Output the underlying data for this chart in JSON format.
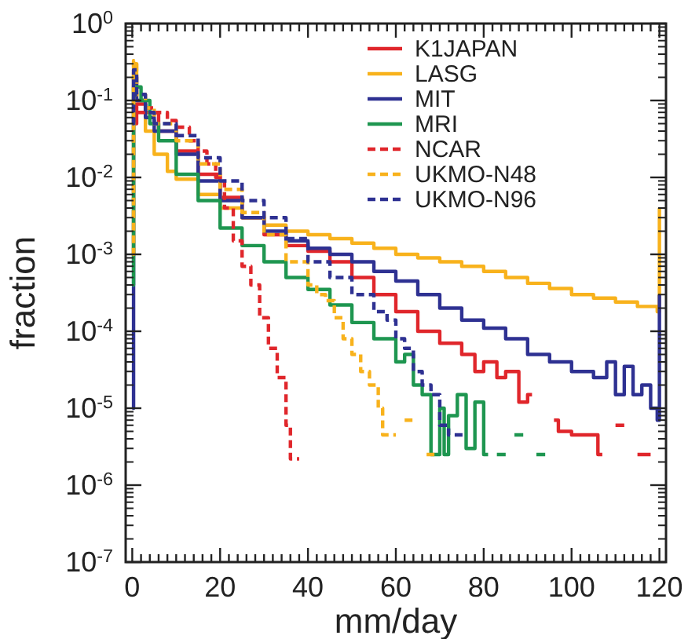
{
  "chart_data": {
    "type": "step",
    "xlabel": "mm/day",
    "ylabel": "fraction",
    "log": "y",
    "legend": "top right",
    "grid": false,
    "xlim": [
      -1.5,
      121.5
    ],
    "ylim": [
      1e-07,
      1
    ],
    "xticks": [
      0,
      {
        "value": 2,
        "label": null
      },
      {
        "value": 4,
        "label": null
      },
      {
        "value": 6,
        "label": null
      },
      {
        "value": 8,
        "label": null
      },
      {
        "value": 10,
        "label": null
      },
      {
        "value": 12,
        "label": null
      },
      {
        "value": 14,
        "label": null
      },
      {
        "value": 16,
        "label": null
      },
      {
        "value": 18,
        "label": null
      },
      20,
      {
        "value": 22,
        "label": null
      },
      {
        "value": 24,
        "label": null
      },
      {
        "value": 26,
        "label": null
      },
      {
        "value": 28,
        "label": null
      },
      {
        "value": 30,
        "label": null
      },
      {
        "value": 32,
        "label": null
      },
      {
        "value": 34,
        "label": null
      },
      {
        "value": 36,
        "label": null
      },
      {
        "value": 38,
        "label": null
      },
      40,
      {
        "value": 42,
        "label": null
      },
      {
        "value": 44,
        "label": null
      },
      {
        "value": 46,
        "label": null
      },
      {
        "value": 48,
        "label": null
      },
      {
        "value": 50,
        "label": null
      },
      {
        "value": 52,
        "label": null
      },
      {
        "value": 54,
        "label": null
      },
      {
        "value": 56,
        "label": null
      },
      {
        "value": 58,
        "label": null
      },
      60,
      {
        "value": 62,
        "label": null
      },
      {
        "value": 64,
        "label": null
      },
      {
        "value": 66,
        "label": null
      },
      {
        "value": 68,
        "label": null
      },
      {
        "value": 70,
        "label": null
      },
      {
        "value": 72,
        "label": null
      },
      {
        "value": 74,
        "label": null
      },
      {
        "value": 76,
        "label": null
      },
      {
        "value": 78,
        "label": null
      },
      80,
      {
        "value": 82,
        "label": null
      },
      {
        "value": 84,
        "label": null
      },
      {
        "value": 86,
        "label": null
      },
      {
        "value": 88,
        "label": null
      },
      {
        "value": 90,
        "label": null
      },
      {
        "value": 92,
        "label": null
      },
      {
        "value": 94,
        "label": null
      },
      {
        "value": 96,
        "label": null
      },
      {
        "value": 98,
        "label": null
      },
      100,
      {
        "value": 102,
        "label": null
      },
      {
        "value": 104,
        "label": null
      },
      {
        "value": 106,
        "label": null
      },
      {
        "value": 108,
        "label": null
      },
      {
        "value": 110,
        "label": null
      },
      {
        "value": 112,
        "label": null
      },
      {
        "value": 114,
        "label": null
      },
      {
        "value": 116,
        "label": null
      },
      {
        "value": 118,
        "label": null
      },
      120
    ],
    "yticks": [
      {
        "value": 1e-07,
        "label": "10$^{-7}$"
      },
      {
        "value": 1e-06,
        "label": "10$^{-6}$"
      },
      {
        "value": 1e-05,
        "label": "10$^{-5}$"
      },
      {
        "value": 0.0001,
        "label": "10$^{-4}$"
      },
      {
        "value": 0.001,
        "label": "10$^{-3}$"
      },
      {
        "value": 0.01,
        "label": "10$^{-2}$"
      },
      {
        "value": 0.1,
        "label": "10$^{-1}$"
      },
      {
        "value": 1,
        "label": "10$^{0}$"
      }
    ],
    "series": [
      {
        "name": "K1JAPAN",
        "color": "#e0262b",
        "line_style": "solid",
        "x": [
          0,
          1,
          3,
          6,
          10,
          15,
          20,
          25,
          30,
          35,
          40,
          45,
          50,
          55,
          60,
          65,
          70,
          75,
          78,
          80,
          83,
          85,
          88,
          90,
          91,
          92,
          96,
          97,
          100,
          106,
          107,
          108,
          110,
          112,
          113,
          115,
          118
        ],
        "values": [
          0.05,
          0.09,
          0.07,
          0.04,
          0.022,
          0.011,
          0.0055,
          0.003,
          0.0018,
          0.0013,
          0.0011,
          0.0008,
          0.0005,
          0.0003,
          0.00018,
          0.0001,
          7e-05,
          5e-05,
          3e-05,
          4e-05,
          2.5e-05,
          3e-05,
          1.2e-05,
          1.5e-05,
          1.5e-05,
          null,
          7e-06,
          5e-06,
          4.5e-06,
          2.5e-06,
          2.5e-06,
          null,
          6e-06,
          6e-06,
          null,
          2.5e-06,
          2.5e-06
        ]
      },
      {
        "name": "LASG",
        "color": "#f8b21c",
        "line_style": "solid",
        "x": [
          0,
          0.3,
          1,
          3,
          5,
          8,
          10,
          15,
          20,
          25,
          30,
          35,
          40,
          45,
          50,
          55,
          60,
          65,
          70,
          75,
          80,
          85,
          90,
          95,
          100,
          105,
          110,
          115,
          119.5,
          120
        ],
        "values": [
          0.001,
          0.3,
          0.1,
          0.04,
          0.02,
          0.012,
          0.0095,
          0.006,
          0.004,
          0.003,
          0.0024,
          0.002,
          0.0018,
          0.0016,
          0.0014,
          0.0012,
          0.001,
          0.0009,
          0.0008,
          0.0007,
          0.0006,
          0.0005,
          0.00042,
          0.00036,
          0.0003,
          0.00027,
          0.00024,
          0.00021,
          0.00018,
          0.004
        ]
      },
      {
        "name": "MIT",
        "color": "#2e3192",
        "line_style": "solid",
        "x": [
          0,
          0.3,
          1,
          3,
          5,
          10,
          15,
          20,
          25,
          30,
          35,
          40,
          45,
          50,
          55,
          60,
          65,
          70,
          75,
          80,
          85,
          90,
          95,
          100,
          105,
          108,
          110,
          112,
          114,
          116,
          118,
          119.5,
          120
        ],
        "values": [
          1e-05,
          0.2,
          0.1,
          0.06,
          0.04,
          0.02,
          0.009,
          0.005,
          0.003,
          0.002,
          0.0015,
          0.0012,
          0.001,
          0.0008,
          0.0006,
          0.00045,
          0.0003,
          0.0002,
          0.00014,
          0.00011,
          8e-05,
          5e-05,
          4e-05,
          3e-05,
          2.5e-05,
          4e-05,
          1.5e-05,
          3.5e-05,
          1.5e-05,
          2e-05,
          1e-05,
          7e-06,
          0.0003
        ]
      },
      {
        "name": "MRI",
        "color": "#1e9650",
        "line_style": "solid",
        "x": [
          0,
          0.3,
          2,
          4,
          6,
          10,
          15,
          20,
          25,
          30,
          35,
          40,
          45,
          50,
          55,
          60,
          62,
          64,
          66,
          68,
          70,
          71,
          72,
          74,
          76,
          78,
          80,
          81,
          82,
          83,
          85,
          86,
          87,
          89,
          90,
          92,
          94
        ],
        "values": [
          0.0004,
          0.15,
          0.1,
          0.05,
          0.03,
          0.011,
          0.005,
          0.0022,
          0.0013,
          0.0008,
          0.0005,
          0.00035,
          0.00022,
          0.00013,
          8e-05,
          4e-05,
          5e-05,
          2e-05,
          1.5e-05,
          2.5e-06,
          1e-05,
          2.5e-06,
          8e-06,
          1.5e-05,
          3e-06,
          1.2e-05,
          2.5e-06,
          2.5e-06,
          null,
          2.5e-06,
          2.5e-06,
          null,
          4.5e-06,
          4.5e-06,
          null,
          2.5e-06,
          2.5e-06
        ]
      },
      {
        "name": "NCAR",
        "color": "#e0262b",
        "line_style": "dashed",
        "x": [
          0,
          0.3,
          1,
          3,
          5,
          8,
          10,
          13,
          15,
          17,
          19,
          21,
          23,
          25,
          27,
          29,
          31,
          33,
          35,
          36,
          38
        ],
        "values": [
          0.05,
          0.08,
          0.07,
          0.08,
          0.07,
          0.055,
          0.045,
          0.03,
          0.022,
          0.015,
          0.01,
          0.004,
          0.0015,
          0.0007,
          0.0004,
          0.00015,
          6e-05,
          2.5e-05,
          6e-06,
          2.2e-06,
          2.2e-06
        ]
      },
      {
        "name": "UKMO-N48",
        "color": "#f8b21c",
        "line_style": "dashed",
        "x": [
          0,
          0.3,
          1,
          3,
          5,
          10,
          15,
          20,
          25,
          30,
          35,
          40,
          42,
          44,
          46,
          48,
          50,
          52,
          54,
          56,
          57,
          60,
          61,
          62,
          64,
          65,
          67,
          69
        ],
        "values": [
          0.001,
          0.33,
          0.12,
          0.08,
          0.05,
          0.03,
          0.015,
          0.007,
          0.0035,
          0.0018,
          0.0008,
          0.0004,
          0.0003,
          0.00025,
          0.00015,
          8e-05,
          5e-05,
          3e-05,
          2e-05,
          1e-05,
          4.5e-06,
          4.5e-06,
          null,
          7e-06,
          7e-06,
          null,
          2.5e-06,
          2.5e-06
        ]
      },
      {
        "name": "UKMO-N96",
        "color": "#2e3192",
        "line_style": "dashed",
        "x": [
          0,
          0.3,
          1,
          3,
          5,
          10,
          15,
          20,
          25,
          30,
          35,
          40,
          45,
          50,
          55,
          58,
          60,
          62,
          64,
          66,
          68,
          70,
          72,
          76
        ],
        "values": [
          0.05,
          0.25,
          0.12,
          0.07,
          0.05,
          0.035,
          0.018,
          0.009,
          0.005,
          0.003,
          0.0016,
          0.0008,
          0.0005,
          0.0003,
          0.00018,
          0.00014,
          8e-05,
          6e-05,
          3e-05,
          2e-05,
          1.5e-05,
          6e-06,
          4.5e-06,
          4.5e-06
        ]
      }
    ]
  }
}
